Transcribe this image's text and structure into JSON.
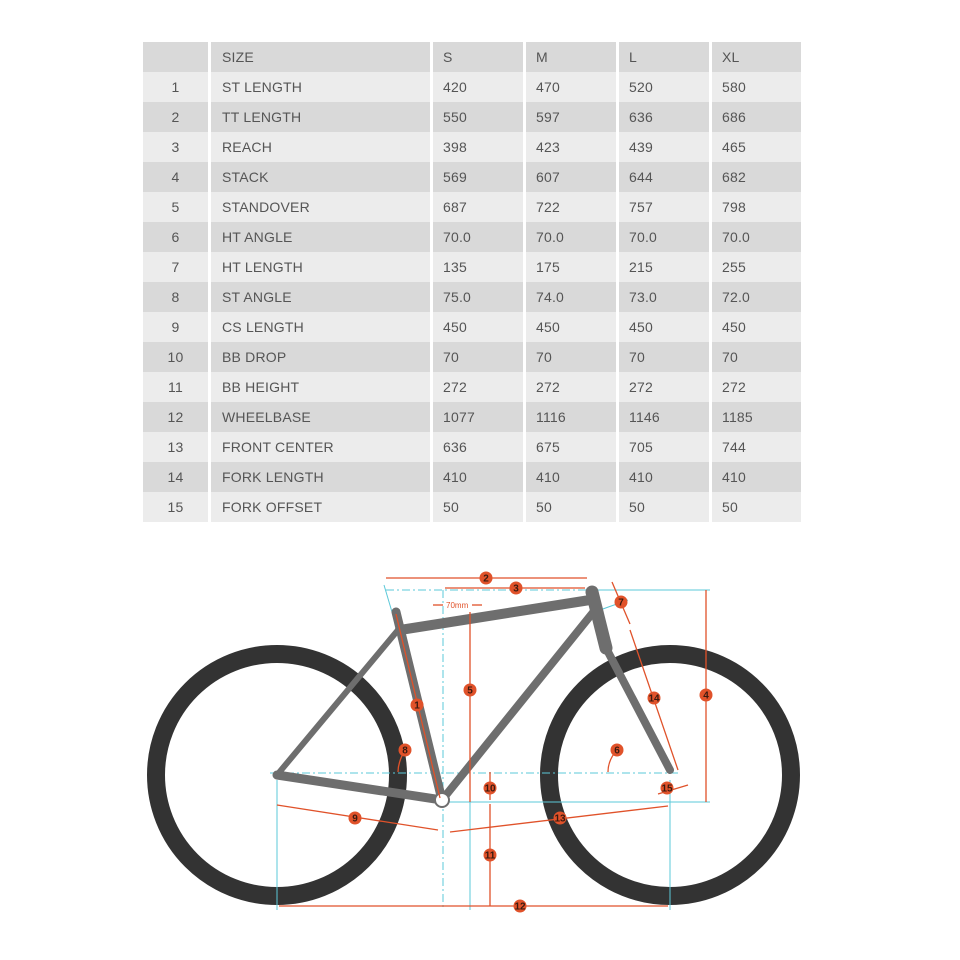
{
  "table": {
    "headers": [
      "",
      "SIZE",
      "S",
      "M",
      "L",
      "XL"
    ],
    "rows": [
      {
        "num": "1",
        "label": "ST LENGTH",
        "values": [
          "420",
          "470",
          "520",
          "580"
        ]
      },
      {
        "num": "2",
        "label": "TT LENGTH",
        "values": [
          "550",
          "597",
          "636",
          "686"
        ]
      },
      {
        "num": "3",
        "label": "REACH",
        "values": [
          "398",
          "423",
          "439",
          "465"
        ]
      },
      {
        "num": "4",
        "label": "STACK",
        "values": [
          "569",
          "607",
          "644",
          "682"
        ]
      },
      {
        "num": "5",
        "label": "STANDOVER",
        "values": [
          "687",
          "722",
          "757",
          "798"
        ]
      },
      {
        "num": "6",
        "label": "HT ANGLE",
        "values": [
          "70.0",
          "70.0",
          "70.0",
          "70.0"
        ]
      },
      {
        "num": "7",
        "label": "HT LENGTH",
        "values": [
          "135",
          "175",
          "215",
          "255"
        ]
      },
      {
        "num": "8",
        "label": "ST ANGLE",
        "values": [
          "75.0",
          "74.0",
          "73.0",
          "72.0"
        ]
      },
      {
        "num": "9",
        "label": "CS LENGTH",
        "values": [
          "450",
          "450",
          "450",
          "450"
        ]
      },
      {
        "num": "10",
        "label": "BB DROP",
        "values": [
          "70",
          "70",
          "70",
          "70"
        ]
      },
      {
        "num": "11",
        "label": "BB HEIGHT",
        "values": [
          "272",
          "272",
          "272",
          "272"
        ]
      },
      {
        "num": "12",
        "label": "WHEELBASE",
        "values": [
          "1077",
          "1116",
          "1146",
          "1185"
        ]
      },
      {
        "num": "13",
        "label": "FRONT CENTER",
        "values": [
          "636",
          "675",
          "705",
          "744"
        ]
      },
      {
        "num": "14",
        "label": "FORK LENGTH",
        "values": [
          "410",
          "410",
          "410",
          "410"
        ]
      },
      {
        "num": "15",
        "label": "FORK OFFSET",
        "values": [
          "50",
          "50",
          "50",
          "50"
        ]
      }
    ]
  },
  "diagram": {
    "offset_label": "70mm",
    "markers": [
      "1",
      "2",
      "3",
      "4",
      "5",
      "6",
      "7",
      "8",
      "9",
      "10",
      "11",
      "12",
      "13",
      "14",
      "15"
    ],
    "colors": {
      "dimension": "#e0522a",
      "guide": "#5bc8d8",
      "frame": "#6e6e6e",
      "tire": "#333333"
    }
  }
}
